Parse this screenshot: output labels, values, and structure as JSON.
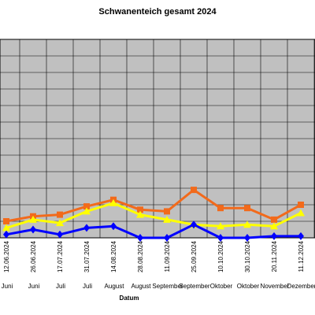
{
  "chart_data": {
    "type": "line",
    "title": "Schwanenteich gesamt 2024",
    "xlabel": "Datum",
    "ylabel": "",
    "ylim": [
      0,
      12
    ],
    "grid": true,
    "legend": "none",
    "categories": [
      "12.06.2024",
      "26.06.2024",
      "17.07.2024",
      "31.07.2024",
      "14.08.2024",
      "28.08.2024",
      "11.09.2024",
      "25.09.2024",
      "10.10.2024",
      "30.10.2024",
      "20.11.2024",
      "11.12.2024"
    ],
    "months": [
      "Juni",
      "Juni",
      "Juli",
      "Juli",
      "August",
      "August",
      "September",
      "September",
      "Oktober",
      "Oktober",
      "November",
      "Dezember"
    ],
    "series": [
      {
        "color": "#f26a1b",
        "marker": "square",
        "values": [
          1.0,
          1.3,
          1.4,
          1.9,
          2.3,
          1.7,
          1.6,
          2.9,
          1.8,
          1.8,
          1.1,
          2.0
        ]
      },
      {
        "color": "#ffff00",
        "marker": "triangle",
        "values": [
          0.6,
          1.1,
          0.9,
          1.6,
          2.1,
          1.4,
          1.1,
          0.8,
          0.7,
          0.8,
          0.7,
          1.5
        ]
      },
      {
        "color": "#0000ff",
        "marker": "diamond",
        "values": [
          0.2,
          0.5,
          0.2,
          0.6,
          0.7,
          0.0,
          0.0,
          0.8,
          0.0,
          0.0,
          0.1,
          0.1
        ]
      }
    ]
  }
}
